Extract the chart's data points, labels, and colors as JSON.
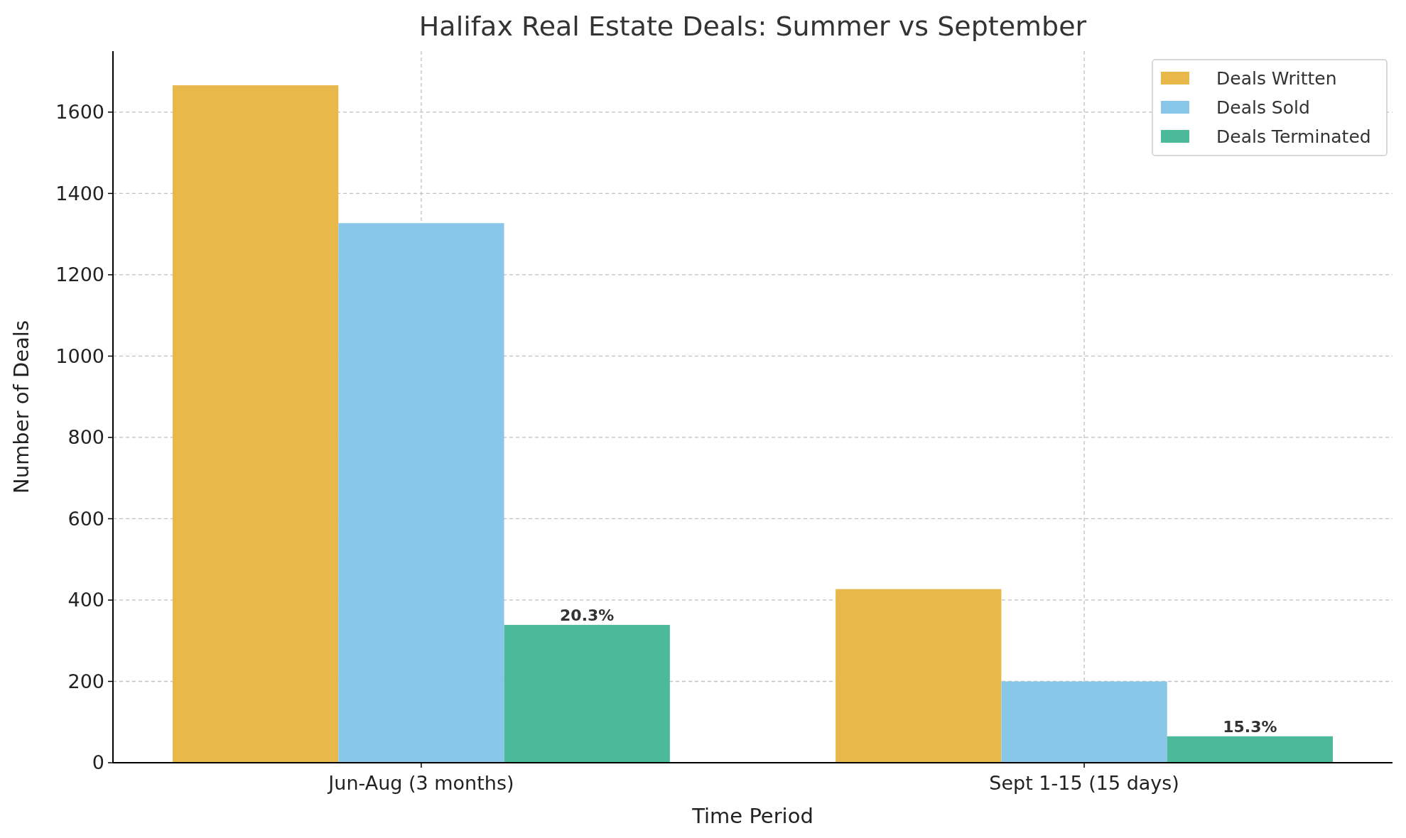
{
  "chart_data": {
    "type": "bar",
    "title": "Halifax Real Estate Deals: Summer vs September",
    "xlabel": "Time Period",
    "ylabel": "Number of Deals",
    "categories": [
      "Jun-Aug (3 months)",
      "Sept 1-15 (15 days)"
    ],
    "series": [
      {
        "name": "Deals Written",
        "color": "#e9b84b",
        "values": [
          1666,
          427
        ]
      },
      {
        "name": "Deals Sold",
        "color": "#89c7e9",
        "values": [
          1327,
          200
        ]
      },
      {
        "name": "Deals Terminated",
        "color": "#4cb99a",
        "values": [
          339,
          65
        ]
      }
    ],
    "annotations": [
      "20.3%",
      "15.3%"
    ],
    "ylim": [
      0,
      1750
    ],
    "yticks": [
      0,
      200,
      400,
      600,
      800,
      1000,
      1200,
      1400,
      1600
    ],
    "grid": true,
    "legend": "top right"
  }
}
